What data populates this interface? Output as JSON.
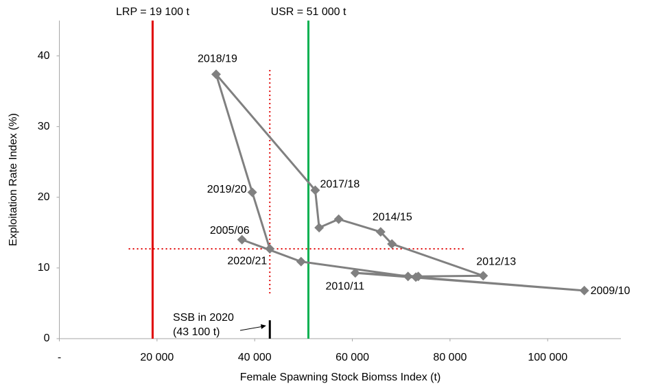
{
  "chart_data": {
    "type": "scatter",
    "x_label": "Female Spawning Stock Biomss Index (t)",
    "y_label": "Exploitation Rate Index (%)",
    "xlim": [
      0,
      115000
    ],
    "ylim": [
      0,
      45
    ],
    "xticks": [
      {
        "value": 0,
        "label": "-"
      },
      {
        "value": 20000,
        "label": "20 000"
      },
      {
        "value": 40000,
        "label": "40 000"
      },
      {
        "value": 60000,
        "label": "60 000"
      },
      {
        "value": 80000,
        "label": "80 000"
      },
      {
        "value": 100000,
        "label": "100 000"
      }
    ],
    "yticks": [
      0,
      10,
      20,
      30,
      40
    ],
    "series": [
      {
        "color": "#808080",
        "x": [
          37400,
          49500,
          71400,
          73000,
          107500,
          60600,
          73500,
          86800,
          68100,
          65800,
          57200,
          53200,
          52400,
          32100,
          39500,
          43100
        ],
        "values": [
          14.0,
          10.9,
          8.8,
          8.7,
          6.8,
          9.3,
          8.8,
          8.9,
          13.4,
          15.1,
          16.9,
          15.7,
          21.0,
          37.4,
          20.7,
          12.7
        ],
        "point_labels": [
          "2005/06",
          null,
          null,
          null,
          "2009/10",
          "2010/11",
          null,
          "2012/13",
          null,
          "2014/15",
          null,
          null,
          "2017/18",
          "2018/19",
          "2019/20",
          "2020/21"
        ]
      }
    ],
    "reference_lines": [
      {
        "label": "LRP = 19 100 t",
        "x": 19100,
        "color": "#e00000"
      },
      {
        "label": "USR = 51 000 t",
        "x": 51000,
        "color": "#00b050"
      }
    ],
    "crosshair": {
      "x": 43100,
      "y": 12.7,
      "x_extent": [
        14200,
        83000
      ],
      "y_extent": [
        6.4,
        38
      ],
      "color": "#e00000"
    },
    "ssb_marker": {
      "x": 43100,
      "y_extent": [
        0,
        2.6
      ],
      "lines": [
        "SSB in 2020",
        "(43 100 t)"
      ]
    }
  }
}
